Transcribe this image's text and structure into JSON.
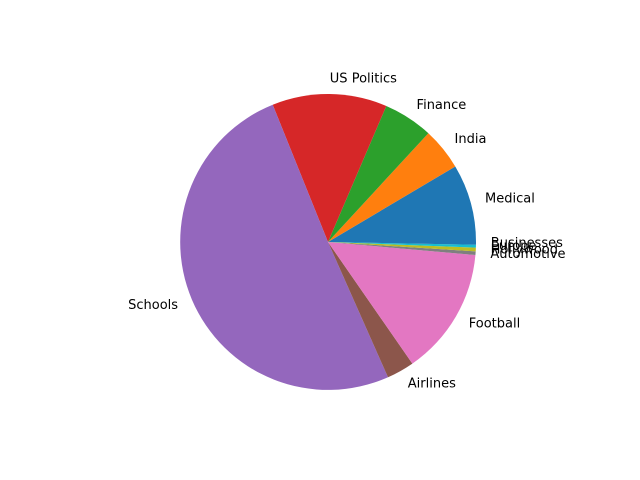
{
  "chart_data": {
    "type": "pie",
    "title": "",
    "start_angle_deg": 0,
    "direction": "counterclockwise",
    "slices": [
      {
        "label": "Medical",
        "value": 8.5,
        "color": "#1f77b4"
      },
      {
        "label": "India",
        "value": 4.6,
        "color": "#ff7f0e"
      },
      {
        "label": "Finance",
        "value": 5.4,
        "color": "#2ca02c"
      },
      {
        "label": "US Politics",
        "value": 12.5,
        "color": "#d62728"
      },
      {
        "label": "Schools",
        "value": 50.4,
        "color": "#9467bd"
      },
      {
        "label": "Airlines",
        "value": 3.0,
        "color": "#8c564b"
      },
      {
        "label": "Football",
        "value": 13.9,
        "color": "#e377c2"
      },
      {
        "label": "Automotive",
        "value": 0.4,
        "color": "#7f7f7f"
      },
      {
        "label": "Hollywood",
        "value": 0.4,
        "color": "#bcbd22"
      },
      {
        "label": "Europe",
        "value": 0.3,
        "color": "#17becf"
      },
      {
        "label": "Businesses",
        "value": 0.3,
        "color": "#1f77b4"
      }
    ]
  }
}
